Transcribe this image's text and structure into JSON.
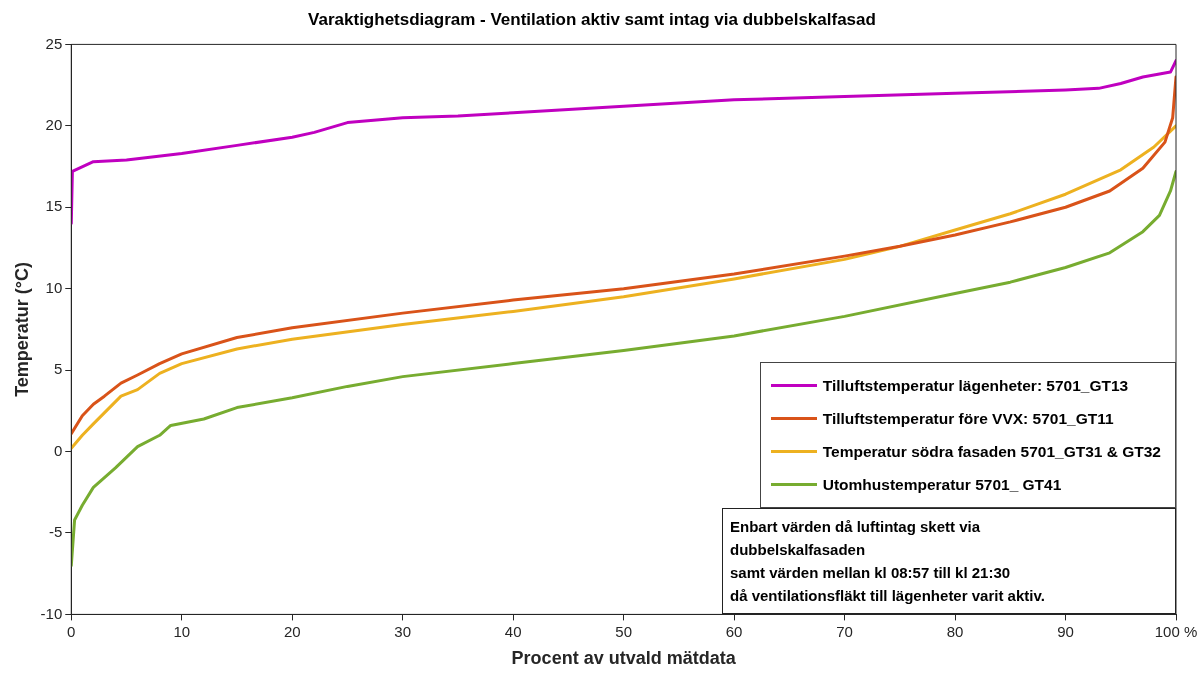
{
  "chart_data": {
    "type": "line",
    "title": "Varaktighetsdiagram - Ventilation aktiv samt intag via dubbelskalfasad",
    "xlabel": "Procent av utvald mätdata",
    "ylabel": "Temperatur (°C)",
    "xlim": [
      0,
      100
    ],
    "xticks": [
      0,
      10,
      20,
      30,
      40,
      50,
      60,
      70,
      80,
      90,
      {
        "value": 100,
        "label": "100 %"
      }
    ],
    "ylim": [
      -10,
      25
    ],
    "yticks": [
      -10,
      -5,
      0,
      5,
      10,
      15,
      20,
      25
    ],
    "grid": false,
    "legend": "bottom right",
    "marker": "none",
    "line_style": "solid",
    "annotations": [
      "Enbart värden då luftintag skett via\ndubbelskalfasaden\nsamt värden mellan kl 08:57 till kl 21:30\ndå ventilationsfläkt till lägenheter varit aktiv."
    ],
    "series": [
      {
        "name": "Tilluftstemperatur lägenheter: 5701_GT13",
        "color": "#c000c0",
        "x": [
          0,
          0.1,
          2,
          5,
          10,
          15,
          20,
          22,
          25,
          30,
          35,
          40,
          50,
          60,
          70,
          80,
          90,
          93,
          95,
          97,
          99.5,
          100
        ],
        "values": [
          14,
          17.2,
          17.8,
          17.9,
          18.3,
          18.8,
          19.3,
          19.6,
          20.2,
          20.5,
          20.6,
          20.8,
          21.2,
          21.6,
          21.8,
          22.0,
          22.2,
          22.3,
          22.6,
          23.0,
          23.3,
          24
        ]
      },
      {
        "name": "Tilluftstemperatur före VVX: 5701_GT11",
        "color": "#d95319",
        "x": [
          0,
          1,
          2,
          3,
          4.5,
          6,
          8,
          10,
          15,
          20,
          30,
          40,
          50,
          60,
          70,
          75,
          80,
          85,
          90,
          94,
          97,
          99,
          99.7,
          100
        ],
        "values": [
          1.1,
          2.2,
          2.9,
          3.4,
          4.2,
          4.7,
          5.4,
          6.0,
          7.0,
          7.6,
          8.5,
          9.3,
          10.0,
          10.9,
          12.0,
          12.6,
          13.3,
          14.1,
          15.0,
          16.0,
          17.4,
          19.0,
          20.5,
          23
        ]
      },
      {
        "name": "Temperatur södra fasaden 5701_GT31 & GT32",
        "color": "#edb120",
        "x": [
          0,
          1,
          2,
          4.5,
          6,
          8,
          10,
          15,
          20,
          30,
          40,
          50,
          60,
          70,
          75,
          80,
          85,
          90,
          95,
          98,
          100
        ],
        "values": [
          0.2,
          1.0,
          1.7,
          3.4,
          3.8,
          4.8,
          5.4,
          6.3,
          6.9,
          7.8,
          8.6,
          9.5,
          10.6,
          11.8,
          12.6,
          13.6,
          14.6,
          15.8,
          17.3,
          18.7,
          20
        ]
      },
      {
        "name": "Utomhustemperatur 5701_ GT41",
        "color": "#77ac30",
        "x": [
          0,
          0.3,
          1,
          2,
          4,
          6,
          8,
          9,
          12,
          15,
          20,
          25,
          30,
          40,
          50,
          60,
          70,
          80,
          85,
          90,
          94,
          97,
          98.5,
          99.5,
          100
        ],
        "values": [
          -7,
          -4.2,
          -3.3,
          -2.2,
          -1.0,
          0.3,
          1.0,
          1.6,
          2.0,
          2.7,
          3.3,
          4.0,
          4.6,
          5.4,
          6.2,
          7.1,
          8.3,
          9.7,
          10.4,
          11.3,
          12.2,
          13.5,
          14.5,
          16,
          17.2
        ]
      }
    ]
  }
}
